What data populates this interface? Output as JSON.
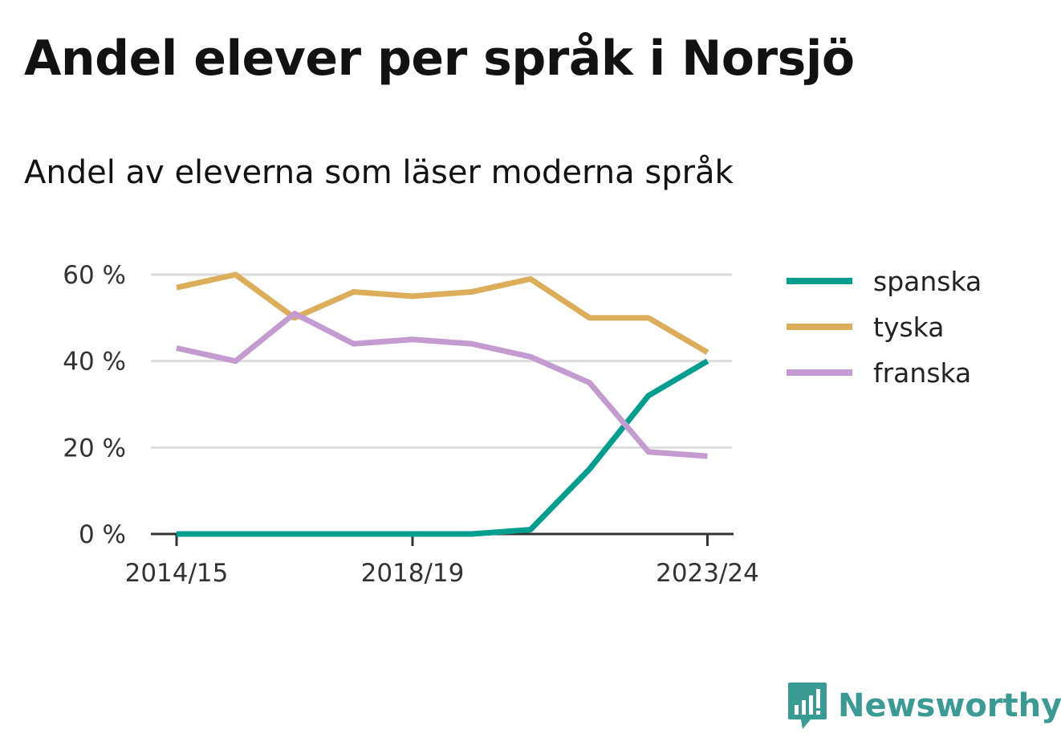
{
  "title": "Andel elever per språk i Norsjö",
  "subtitle": "Andel av eleverna som läser moderna språk",
  "logo": {
    "text": "Newsworthy",
    "icon": "newsworthy-logo-icon",
    "color": "#3a9a94"
  },
  "chart_data": {
    "type": "line",
    "x": [
      "2014/15",
      "2015/16",
      "2016/17",
      "2017/18",
      "2018/19",
      "2019/20",
      "2020/21",
      "2021/22",
      "2022/23",
      "2023/24"
    ],
    "x_tick_labels": [
      "2014/15",
      "2018/19",
      "2023/24"
    ],
    "y_ticks": [
      0,
      20,
      40,
      60
    ],
    "y_tick_labels": [
      "0 %",
      "20 %",
      "40 %",
      "60 %"
    ],
    "ylim": [
      0,
      60
    ],
    "grid": true,
    "legend_position": "right",
    "series": [
      {
        "name": "spanska",
        "color": "#009e8f",
        "values": [
          0,
          0,
          0,
          0,
          0,
          0,
          1,
          15,
          32,
          40
        ]
      },
      {
        "name": "tyska",
        "color": "#dcae5a",
        "values": [
          57,
          60,
          50,
          56,
          55,
          56,
          59,
          50,
          50,
          42
        ]
      },
      {
        "name": "franska",
        "color": "#c39bd0",
        "values": [
          43,
          40,
          51,
          44,
          45,
          44,
          41,
          35,
          19,
          18
        ]
      }
    ]
  }
}
